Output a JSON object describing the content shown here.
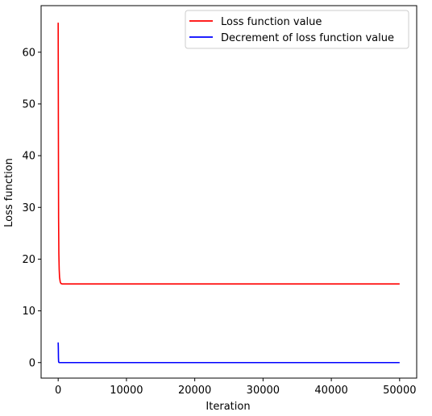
{
  "chart_data": {
    "type": "line",
    "title": "",
    "xlabel": "Iteration",
    "ylabel": "Loss function",
    "xlim": [
      -2500,
      52500
    ],
    "ylim": [
      -3.0,
      69.0
    ],
    "xticks": [
      0,
      10000,
      20000,
      30000,
      40000,
      50000
    ],
    "xtick_labels": [
      "0",
      "10000",
      "20000",
      "30000",
      "40000",
      "50000"
    ],
    "yticks": [
      0,
      10,
      20,
      30,
      40,
      50,
      60
    ],
    "ytick_labels": [
      "0",
      "10",
      "20",
      "30",
      "40",
      "50",
      "60"
    ],
    "grid": false,
    "legend_position": "upper right",
    "series": [
      {
        "name": "Loss function value",
        "color": "#ff0000",
        "x": [
          0,
          30,
          60,
          100,
          150,
          200,
          300,
          400,
          600,
          1000,
          2000,
          5000,
          10000,
          15000,
          20000,
          25000,
          30000,
          35000,
          40000,
          45000,
          50000
        ],
        "y": [
          65.7,
          45.0,
          28.0,
          21.0,
          18.0,
          16.5,
          15.6,
          15.3,
          15.2,
          15.2,
          15.2,
          15.2,
          15.2,
          15.2,
          15.2,
          15.2,
          15.2,
          15.2,
          15.2,
          15.2,
          15.2
        ]
      },
      {
        "name": "Decrement of loss function value",
        "color": "#0000ff",
        "x": [
          0,
          20,
          40,
          60,
          100,
          200,
          500,
          1000,
          5000,
          10000,
          20000,
          30000,
          40000,
          50000
        ],
        "y": [
          3.9,
          3.0,
          1.0,
          0.2,
          0.05,
          0.01,
          0.0,
          0.0,
          0.0,
          0.0,
          0.0,
          0.0,
          0.0,
          0.0
        ]
      }
    ]
  }
}
